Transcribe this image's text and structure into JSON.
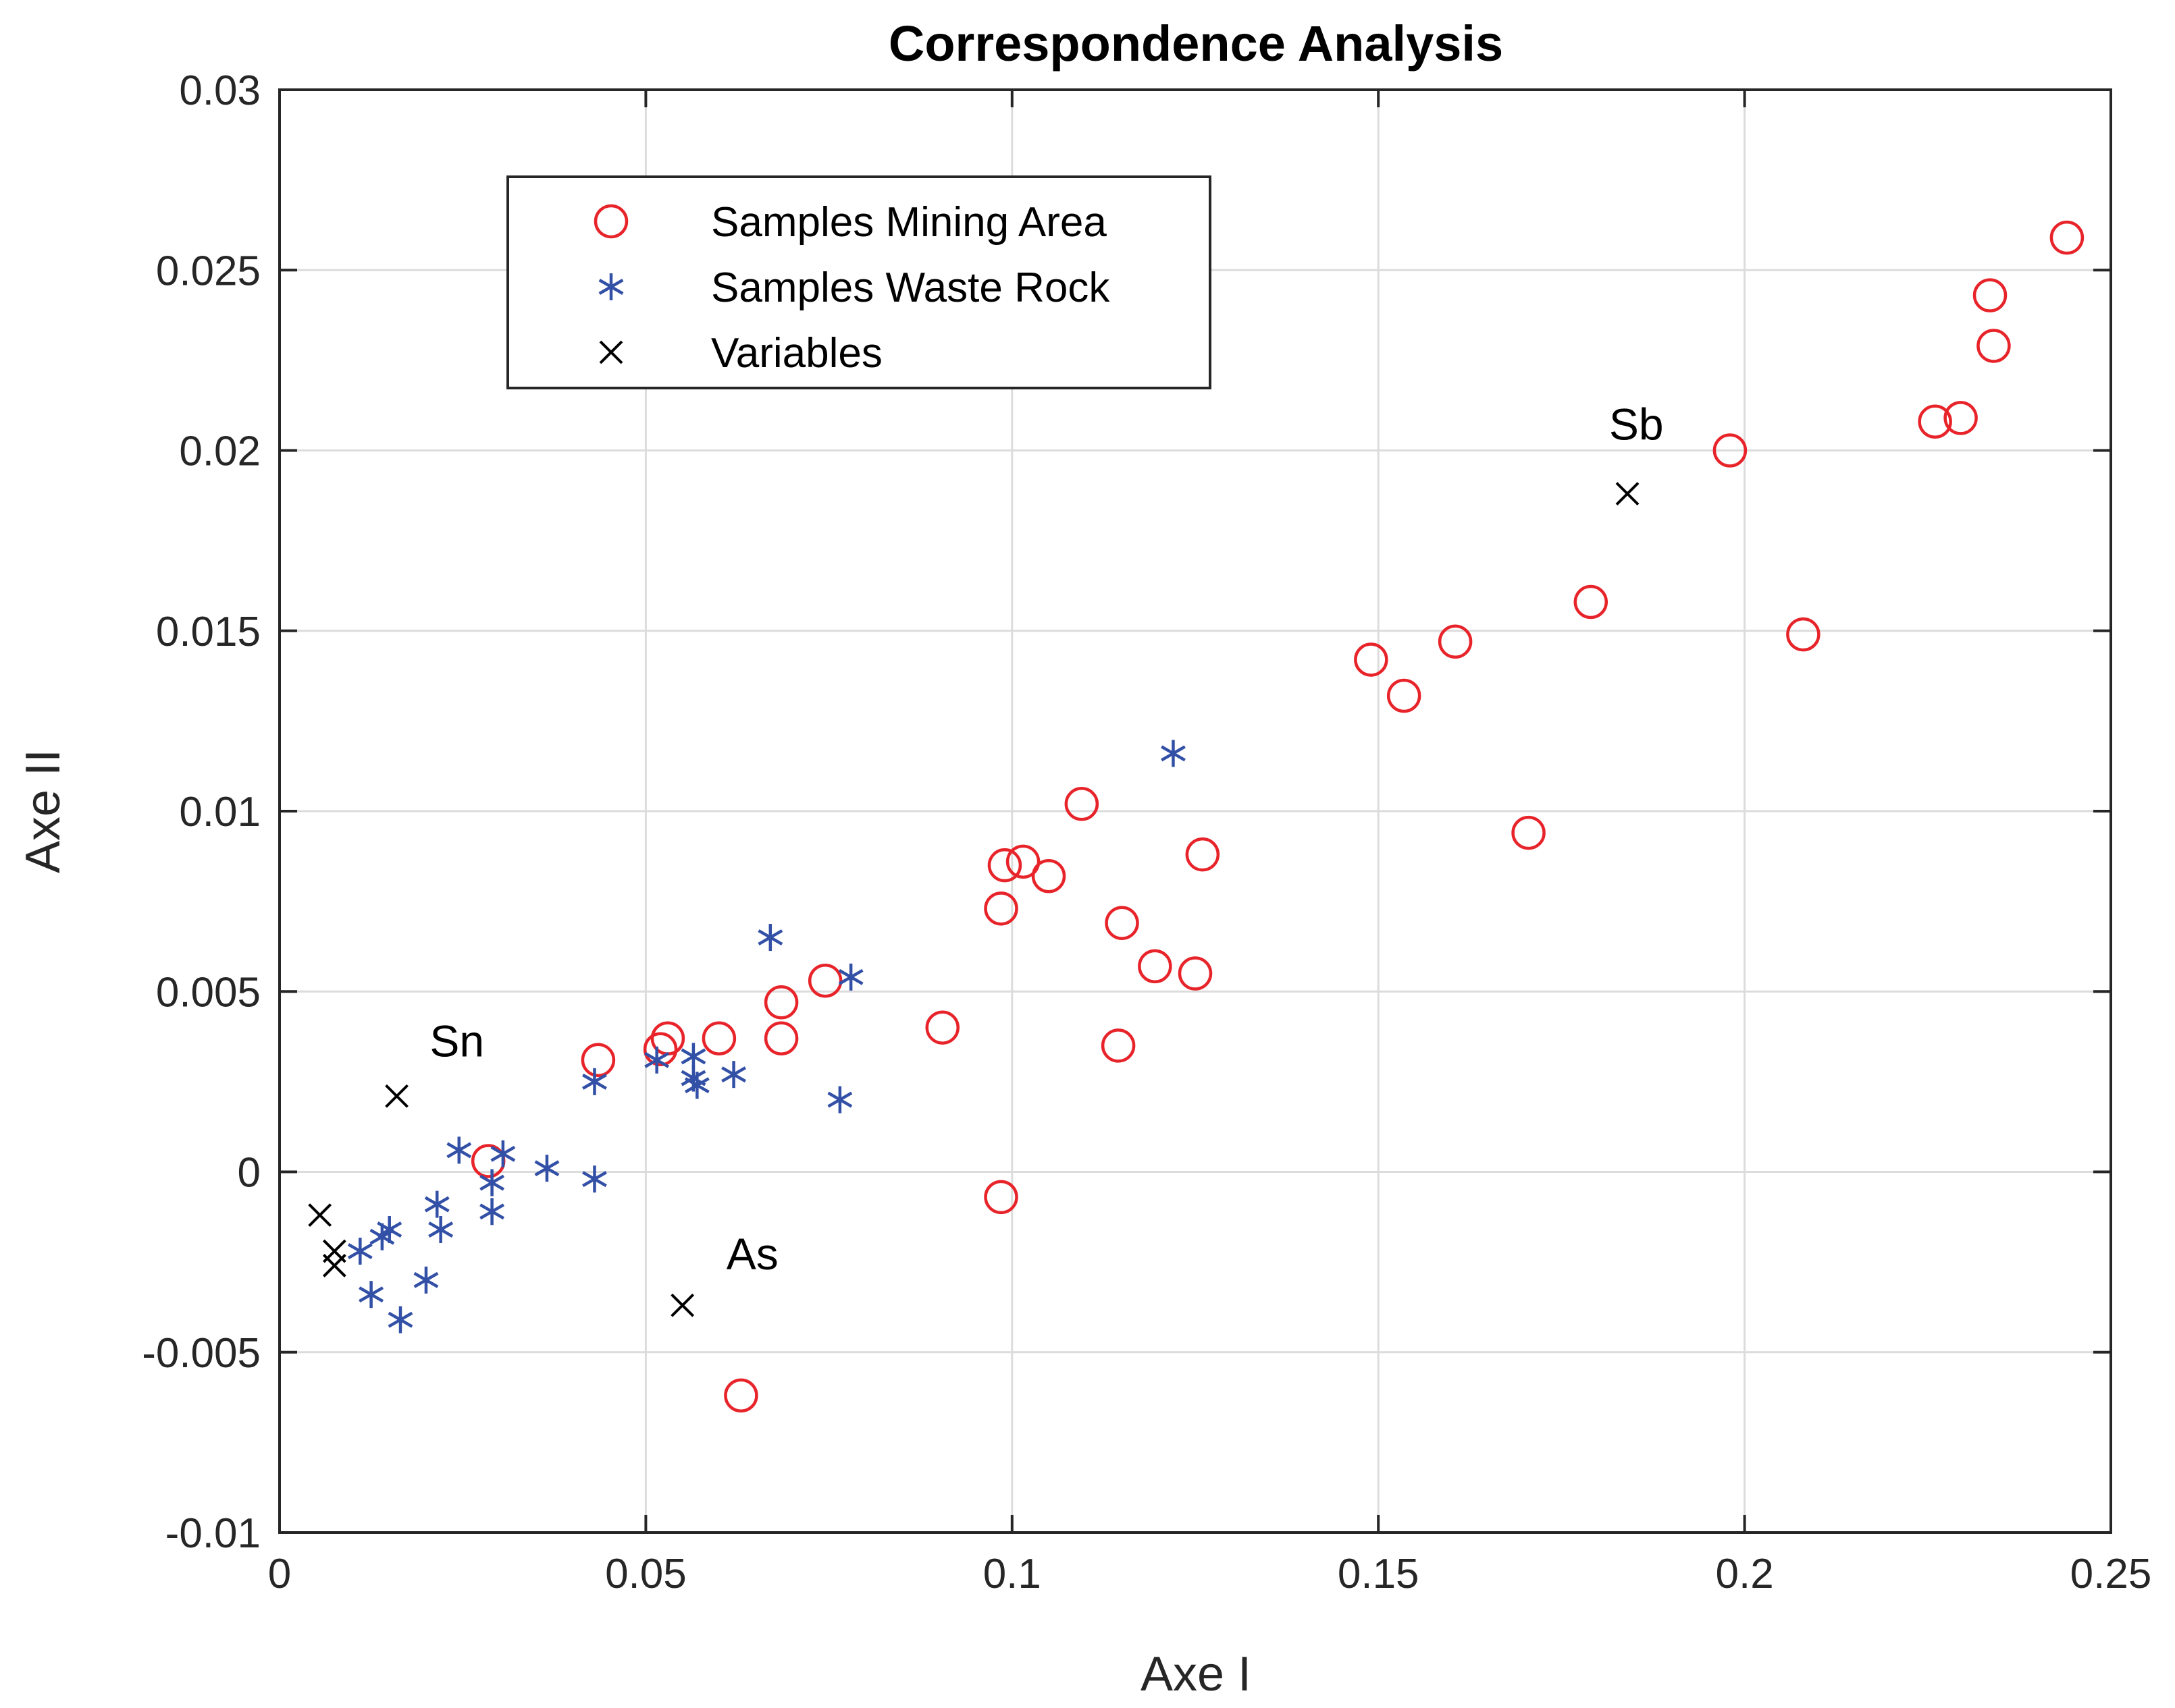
{
  "chart_data": {
    "type": "scatter",
    "title": "Correspondence Analysis",
    "xlabel": "Axe I",
    "ylabel": "Axe II",
    "xlim": [
      0,
      0.25
    ],
    "ylim": [
      -0.01,
      0.03
    ],
    "grid": true,
    "legend_position": "top-left",
    "x_ticks": [
      0,
      0.05,
      0.1,
      0.15,
      0.2,
      0.25
    ],
    "x_tick_labels": [
      "0",
      "0.05",
      "0.1",
      "0.15",
      "0.2",
      "0.25"
    ],
    "y_ticks": [
      -0.01,
      -0.005,
      0,
      0.005,
      0.01,
      0.015,
      0.02,
      0.025,
      0.03
    ],
    "y_tick_labels": [
      "-0.01",
      "-0.005",
      "0",
      "0.005",
      "0.01",
      "0.015",
      "0.02",
      "0.025",
      "0.03"
    ],
    "series": [
      {
        "name": "Samples Mining Area",
        "marker": "circle",
        "color": "#e8242b",
        "points": [
          [
            0.244,
            0.0259
          ],
          [
            0.2335,
            0.0243
          ],
          [
            0.234,
            0.0229
          ],
          [
            0.2295,
            0.0209
          ],
          [
            0.226,
            0.0208
          ],
          [
            0.198,
            0.02
          ],
          [
            0.208,
            0.0149
          ],
          [
            0.179,
            0.0158
          ],
          [
            0.1605,
            0.0147
          ],
          [
            0.149,
            0.0142
          ],
          [
            0.1535,
            0.0132
          ],
          [
            0.1705,
            0.0094
          ],
          [
            0.1095,
            0.0102
          ],
          [
            0.099,
            0.0085
          ],
          [
            0.1015,
            0.0086
          ],
          [
            0.105,
            0.0082
          ],
          [
            0.126,
            0.0088
          ],
          [
            0.0985,
            0.0073
          ],
          [
            0.115,
            0.0069
          ],
          [
            0.1195,
            0.0057
          ],
          [
            0.125,
            0.0055
          ],
          [
            0.0905,
            0.004
          ],
          [
            0.1145,
            0.0035
          ],
          [
            0.0745,
            0.0053
          ],
          [
            0.0685,
            0.0047
          ],
          [
            0.0685,
            0.0037
          ],
          [
            0.06,
            0.0037
          ],
          [
            0.053,
            0.0037
          ],
          [
            0.052,
            0.0034
          ],
          [
            0.0435,
            0.0031
          ],
          [
            0.0285,
            0.0003
          ],
          [
            0.0985,
            -0.0007
          ],
          [
            0.063,
            -0.0062
          ]
        ]
      },
      {
        "name": "Samples Waste Rock",
        "marker": "asterisk",
        "color": "#3350a7",
        "points": [
          [
            0.122,
            0.0116
          ],
          [
            0.067,
            0.0065
          ],
          [
            0.078,
            0.0054
          ],
          [
            0.0765,
            0.002
          ],
          [
            0.062,
            0.0027
          ],
          [
            0.0565,
            0.0032
          ],
          [
            0.0565,
            0.0026
          ],
          [
            0.057,
            0.0024
          ],
          [
            0.0515,
            0.0031
          ],
          [
            0.043,
            0.0025
          ],
          [
            0.043,
            -0.0002
          ],
          [
            0.0365,
            0.0001
          ],
          [
            0.0305,
            0.0005
          ],
          [
            0.029,
            -0.0003
          ],
          [
            0.029,
            -0.0011
          ],
          [
            0.0245,
            0.0006
          ],
          [
            0.0215,
            -0.0009
          ],
          [
            0.022,
            -0.0016
          ],
          [
            0.02,
            -0.003
          ],
          [
            0.015,
            -0.0016
          ],
          [
            0.014,
            -0.0018
          ],
          [
            0.011,
            -0.0022
          ],
          [
            0.0125,
            -0.0034
          ],
          [
            0.0165,
            -0.0041
          ]
        ]
      },
      {
        "name": "Variables",
        "marker": "x",
        "color": "#000000",
        "points": [
          [
            0.184,
            0.0188
          ],
          [
            0.016,
            0.0021
          ],
          [
            0.055,
            -0.0037
          ],
          [
            0.0055,
            -0.0012
          ],
          [
            0.0075,
            -0.0022
          ],
          [
            0.0075,
            -0.0026
          ]
        ]
      }
    ],
    "annotations": [
      {
        "text": "Sb",
        "x": 0.184,
        "y": 0.0188,
        "dx": -0.0025,
        "dy": 0.0015
      },
      {
        "text": "Sn",
        "x": 0.016,
        "y": 0.0021,
        "dx": 0.0045,
        "dy": 0.0011
      },
      {
        "text": "As",
        "x": 0.055,
        "y": -0.0037,
        "dx": 0.006,
        "dy": 0.001
      }
    ]
  }
}
